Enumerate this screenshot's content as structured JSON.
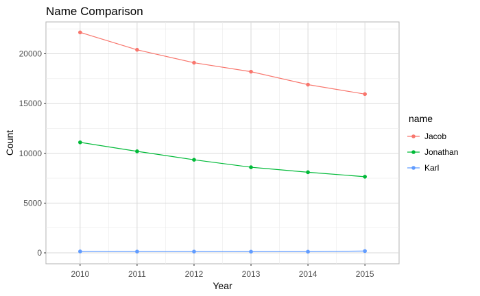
{
  "chart_data": {
    "type": "line",
    "title": "Name Comparison",
    "xlabel": "Year",
    "ylabel": "Count",
    "x": [
      2010,
      2011,
      2012,
      2013,
      2014,
      2015
    ],
    "xlim": [
      2009.4,
      2015.6
    ],
    "ylim": [
      -1100,
      23200
    ],
    "x_ticks": [
      2010,
      2011,
      2012,
      2013,
      2014,
      2015
    ],
    "y_ticks": [
      0,
      5000,
      10000,
      15000,
      20000
    ],
    "y_minor_ticks": [
      2500,
      7500,
      12500,
      17500,
      22500
    ],
    "grid": true,
    "legend": {
      "title": "name",
      "position": "right"
    },
    "series": [
      {
        "name": "Jacob",
        "color": "#F8766D",
        "values": [
          22150,
          20400,
          19100,
          18200,
          16900,
          15950
        ]
      },
      {
        "name": "Jonathan",
        "color": "#00BA38",
        "values": [
          11100,
          10200,
          9350,
          8600,
          8100,
          7650
        ]
      },
      {
        "name": "Karl",
        "color": "#619CFF",
        "values": [
          140,
          130,
          130,
          120,
          120,
          180
        ]
      }
    ]
  }
}
